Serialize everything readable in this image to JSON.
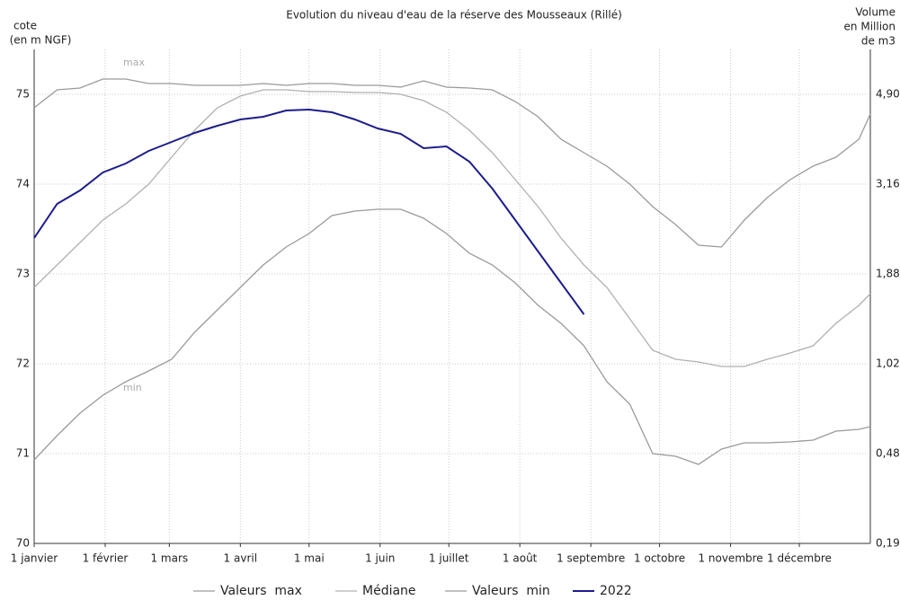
{
  "chart_data": {
    "type": "line",
    "title": "Evolution du niveau d'eau de la réserve des Mousseaux (Rillé)",
    "y_label": [
      "cote",
      "(en m NGF)"
    ],
    "y2_label": [
      "Volume",
      "en Million",
      "de m3"
    ],
    "annotations": [
      "max",
      "min"
    ],
    "x": [
      0,
      10,
      20,
      30,
      40,
      50,
      60,
      70,
      80,
      90,
      100,
      110,
      120,
      130,
      140,
      150,
      160,
      170,
      180,
      190,
      200,
      210,
      220,
      230,
      240,
      250,
      260,
      270,
      280,
      290,
      300,
      310,
      320,
      330,
      340,
      350,
      360,
      365
    ],
    "xlim": [
      0,
      365
    ],
    "xticks": [
      {
        "value": 0,
        "label": "1 janvier"
      },
      {
        "value": 31,
        "label": "1 février"
      },
      {
        "value": 59,
        "label": "1 mars"
      },
      {
        "value": 90,
        "label": "1 avril"
      },
      {
        "value": 120,
        "label": "1 mai"
      },
      {
        "value": 151,
        "label": "1 juin"
      },
      {
        "value": 181,
        "label": "1 juillet"
      },
      {
        "value": 212,
        "label": "1 août"
      },
      {
        "value": 243,
        "label": "1 septembre"
      },
      {
        "value": 273,
        "label": "1 octobre"
      },
      {
        "value": 304,
        "label": "1 novembre"
      },
      {
        "value": 334,
        "label": "1 décembre"
      }
    ],
    "ylim": [
      70,
      75.5
    ],
    "yticks": [
      70,
      71,
      72,
      73,
      74,
      75
    ],
    "y2ticks": [
      {
        "value": 0.19,
        "label": "0,19"
      },
      {
        "value": 0.48,
        "label": "0,48"
      },
      {
        "value": 1.02,
        "label": "1,02"
      },
      {
        "value": 1.88,
        "label": "1,88"
      },
      {
        "value": 3.16,
        "label": "3,16"
      },
      {
        "value": 4.9,
        "label": "4,90"
      }
    ],
    "grid": true,
    "legend": "bottom",
    "series": [
      {
        "name": "Valeurs  max",
        "color": "#9a9a9a",
        "values": [
          74.85,
          75.05,
          75.07,
          75.17,
          75.17,
          75.12,
          75.12,
          75.1,
          75.1,
          75.1,
          75.12,
          75.1,
          75.12,
          75.12,
          75.1,
          75.1,
          75.08,
          75.15,
          75.08,
          75.07,
          75.05,
          74.92,
          74.75,
          74.5,
          74.35,
          74.2,
          74.0,
          73.75,
          73.55,
          73.32,
          73.3,
          73.6,
          73.85,
          74.05,
          74.2,
          74.3,
          74.5,
          74.78
        ]
      },
      {
        "name": "Médiane",
        "color": "#b0b0b0",
        "values": [
          72.85,
          73.1,
          73.35,
          73.6,
          73.78,
          74.0,
          74.3,
          74.6,
          74.85,
          74.98,
          75.05,
          75.05,
          75.03,
          75.03,
          75.02,
          75.02,
          75.0,
          74.93,
          74.8,
          74.6,
          74.35,
          74.05,
          73.75,
          73.4,
          73.1,
          72.85,
          72.5,
          72.15,
          72.05,
          72.02,
          71.97,
          71.97,
          72.05,
          72.12,
          72.2,
          72.45,
          72.65,
          72.78
        ]
      },
      {
        "name": "Valeurs  min",
        "color": "#9a9a9a",
        "values": [
          70.93,
          71.2,
          71.45,
          71.65,
          71.8,
          71.92,
          72.05,
          72.35,
          72.6,
          72.85,
          73.1,
          73.3,
          73.45,
          73.65,
          73.7,
          73.72,
          73.72,
          73.62,
          73.45,
          73.23,
          73.1,
          72.9,
          72.65,
          72.45,
          72.2,
          71.8,
          71.55,
          71.0,
          70.97,
          70.88,
          71.05,
          71.12,
          71.12,
          71.13,
          71.15,
          71.25,
          71.27,
          71.3
        ]
      },
      {
        "name": "2022",
        "color": "#1c1c8c",
        "values": [
          73.4,
          73.78,
          73.93,
          74.13,
          74.23,
          74.37,
          74.47,
          74.57,
          74.65,
          74.72,
          74.75,
          74.82,
          74.83,
          74.8,
          74.72,
          74.62,
          74.56,
          74.4,
          74.42,
          74.25,
          73.95,
          73.6,
          73.25,
          72.9,
          72.55,
          null,
          null,
          null,
          null,
          null,
          null,
          null,
          null,
          null,
          null,
          null,
          null,
          null
        ]
      }
    ]
  }
}
